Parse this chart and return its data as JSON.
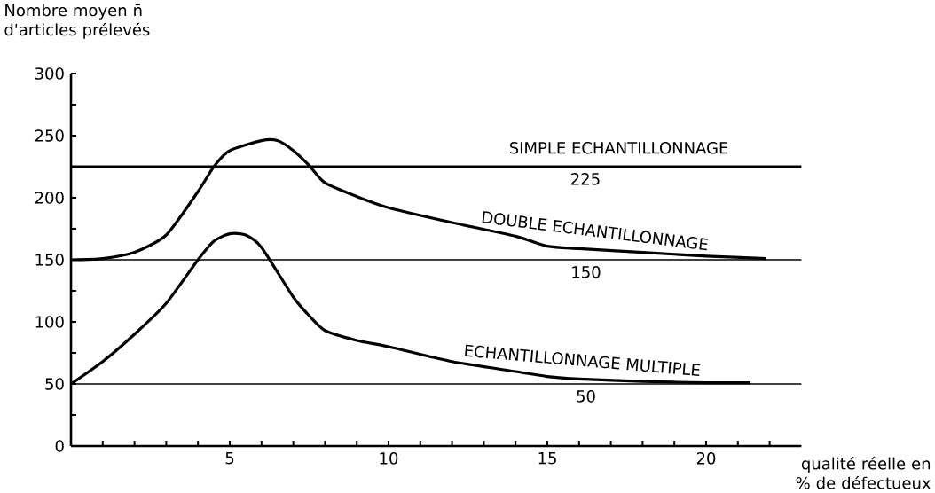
{
  "chart_data": {
    "type": "line",
    "xlabel": "qualité réelle en % de défectueux",
    "ylabel": "Nombre moyen n̄ d'articles prélevés",
    "xlim": [
      0,
      23
    ],
    "ylim": [
      0,
      300
    ],
    "xticks": [
      {
        "value": 1,
        "label": null
      },
      {
        "value": 2,
        "label": null
      },
      {
        "value": 3,
        "label": null
      },
      {
        "value": 4,
        "label": null
      },
      5,
      {
        "value": 6,
        "label": null
      },
      {
        "value": 7,
        "label": null
      },
      {
        "value": 8,
        "label": null
      },
      {
        "value": 9,
        "label": null
      },
      10,
      {
        "value": 11,
        "label": null
      },
      {
        "value": 12,
        "label": null
      },
      {
        "value": 13,
        "label": null
      },
      {
        "value": 14,
        "label": null
      },
      15,
      {
        "value": 16,
        "label": null
      },
      {
        "value": 17,
        "label": null
      },
      {
        "value": 18,
        "label": null
      },
      {
        "value": 19,
        "label": null
      },
      20,
      {
        "value": 21,
        "label": null
      },
      {
        "value": 22,
        "label": null
      }
    ],
    "yticks": [
      0,
      {
        "value": 25,
        "label": null
      },
      50,
      {
        "value": 75,
        "label": null
      },
      100,
      {
        "value": 125,
        "label": null
      },
      150,
      {
        "value": 175,
        "label": null
      },
      200,
      {
        "value": 225,
        "label": null
      },
      250,
      {
        "value": 275,
        "label": null
      },
      300
    ],
    "series": [
      {
        "name": "SIMPLE ECHANTILLONNAGE",
        "color": "#000000",
        "x": [
          0,
          23
        ],
        "values": [
          225,
          225
        ]
      },
      {
        "name": "DOUBLE ECHANTILLONNAGE",
        "color": "#000000",
        "x": [
          0,
          1,
          2,
          3,
          4,
          4.5,
          5,
          6,
          6.5,
          7,
          7.5,
          8,
          9,
          10,
          12,
          14,
          15,
          16,
          18,
          20,
          21.9
        ],
        "values": [
          150,
          151,
          156,
          170,
          205,
          225,
          238,
          246,
          246,
          238,
          226,
          212,
          201,
          192,
          180,
          169,
          161,
          159,
          156,
          153,
          151
        ]
      },
      {
        "name": "ECHANTILLONNAGE MULTIPLE",
        "color": "#000000",
        "x": [
          0,
          1,
          2,
          3,
          4,
          4.5,
          5,
          5.5,
          6,
          7,
          7.5,
          8,
          9,
          10,
          12,
          14,
          15,
          16,
          18,
          20,
          21.4
        ],
        "values": [
          50,
          68,
          90,
          115,
          150,
          165,
          171,
          170,
          160,
          120,
          105,
          93,
          85,
          80,
          68,
          60,
          56,
          54,
          52,
          51,
          51
        ]
      }
    ],
    "ref_lines": [
      {
        "axis": "y",
        "value": 150,
        "label": "150"
      },
      {
        "axis": "y",
        "value": 50,
        "label": "50"
      }
    ],
    "annotations": [
      {
        "text": "225",
        "x": 16.2,
        "y": 225
      }
    ]
  }
}
